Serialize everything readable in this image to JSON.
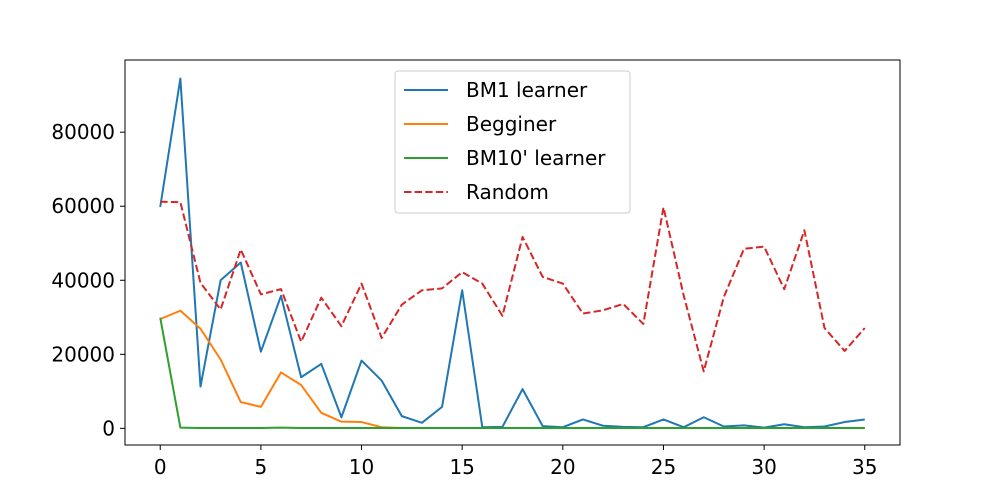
{
  "chart_data": {
    "type": "line",
    "title": "",
    "xlabel": "",
    "ylabel": "",
    "xlim": [
      -1.75,
      36.75
    ],
    "ylim": [
      -4500,
      99500
    ],
    "xticks": [
      0,
      5,
      10,
      15,
      20,
      25,
      30,
      35
    ],
    "yticks": [
      0,
      20000,
      40000,
      60000,
      80000
    ],
    "grid": false,
    "legend_position": "top-center",
    "x": [
      0,
      1,
      2,
      3,
      4,
      5,
      6,
      7,
      8,
      9,
      10,
      11,
      12,
      13,
      14,
      15,
      16,
      17,
      18,
      19,
      20,
      21,
      22,
      23,
      24,
      25,
      26,
      27,
      28,
      29,
      30,
      31,
      32,
      33,
      34,
      35
    ],
    "series": [
      {
        "name": "BM1 learner",
        "color": "#1f77b4",
        "dash": "solid",
        "values": [
          59800,
          94500,
          11300,
          40000,
          44800,
          20700,
          35800,
          13800,
          17400,
          3000,
          18300,
          12900,
          3300,
          1500,
          5800,
          37300,
          300,
          400,
          10600,
          600,
          300,
          2400,
          700,
          400,
          300,
          2400,
          300,
          3000,
          500,
          800,
          200,
          1100,
          300,
          500,
          1700,
          2400
        ]
      },
      {
        "name": "Begginer",
        "color": "#ff7f0e",
        "dash": "solid",
        "values": [
          29500,
          31800,
          26900,
          18600,
          7100,
          5800,
          15100,
          11700,
          4200,
          1800,
          1700,
          300,
          100,
          100,
          100,
          100,
          100,
          100,
          100,
          100,
          100,
          100,
          100,
          100,
          100,
          100,
          100,
          100,
          100,
          100,
          100,
          100,
          100,
          100,
          100,
          100
        ]
      },
      {
        "name": "BM10' learner",
        "color": "#2ca02c",
        "dash": "solid",
        "values": [
          29900,
          200,
          100,
          100,
          100,
          100,
          200,
          100,
          100,
          100,
          100,
          100,
          100,
          100,
          100,
          100,
          100,
          100,
          100,
          100,
          100,
          100,
          100,
          100,
          100,
          100,
          100,
          100,
          100,
          100,
          100,
          100,
          100,
          100,
          100,
          100
        ]
      },
      {
        "name": "Random",
        "color": "#d62728",
        "dash": "dashed",
        "values": [
          61200,
          61100,
          39300,
          32100,
          48300,
          36200,
          37600,
          23400,
          35300,
          27600,
          39100,
          24400,
          33400,
          37300,
          37800,
          42200,
          39100,
          30400,
          51700,
          40900,
          39100,
          31000,
          31900,
          33600,
          28200,
          59700,
          36000,
          15400,
          35500,
          48500,
          49100,
          37600,
          53500,
          27100,
          20900,
          27100
        ]
      }
    ]
  }
}
